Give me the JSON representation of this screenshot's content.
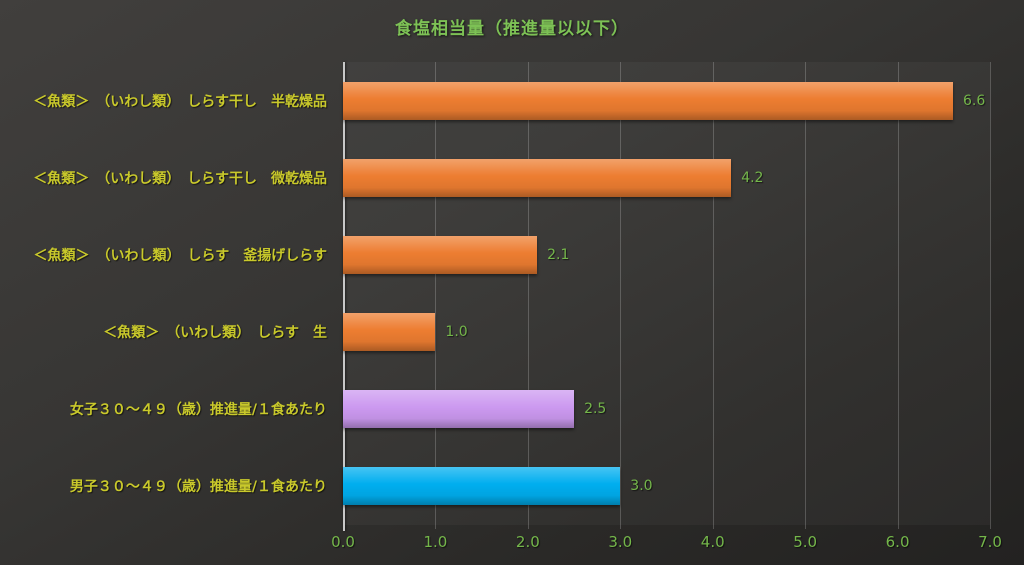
{
  "chart_data": {
    "type": "bar",
    "orientation": "horizontal",
    "title": "食塩相当量（推進量以以下）",
    "categories": [
      "＜魚類＞　（いわし類）　しらす干し　半乾燥品",
      "＜魚類＞　（いわし類）　しらす干し　微乾燥品",
      "＜魚類＞　（いわし類）　しらす　釜揚げしらす",
      "＜魚類＞　（いわし類）　しらす　生",
      "女子３０～４９（歳）推進量/１食あたり",
      "男子３０～４９（歳）推進量/１食あたり"
    ],
    "values": [
      6.6,
      4.2,
      2.1,
      1.0,
      2.5,
      3.0
    ],
    "value_labels": [
      "6.6",
      "4.2",
      "2.1",
      "1.0",
      "2.5",
      "3.0"
    ],
    "bar_colors": [
      "#ed7d31",
      "#ed7d31",
      "#ed7d31",
      "#ed7d31",
      "#cc99f0",
      "#00aeef"
    ],
    "xlim": [
      0,
      7
    ],
    "x_tick_labels": [
      "0.0",
      "1.0",
      "2.0",
      "3.0",
      "4.0",
      "5.0",
      "6.0",
      "7.0"
    ],
    "grid": true,
    "legend": "none"
  },
  "colors": {
    "background_top": "#413f3d",
    "background_bottom": "#232221",
    "title_text": "#7dc155",
    "category_text": "#c9c92b",
    "value_text": "#74b64a",
    "tick_text": "#74b64a",
    "axis_line": "#c8c8c8",
    "bar_orange": "#ed7d31",
    "bar_purple": "#cc99f0",
    "bar_blue": "#00aeef"
  }
}
